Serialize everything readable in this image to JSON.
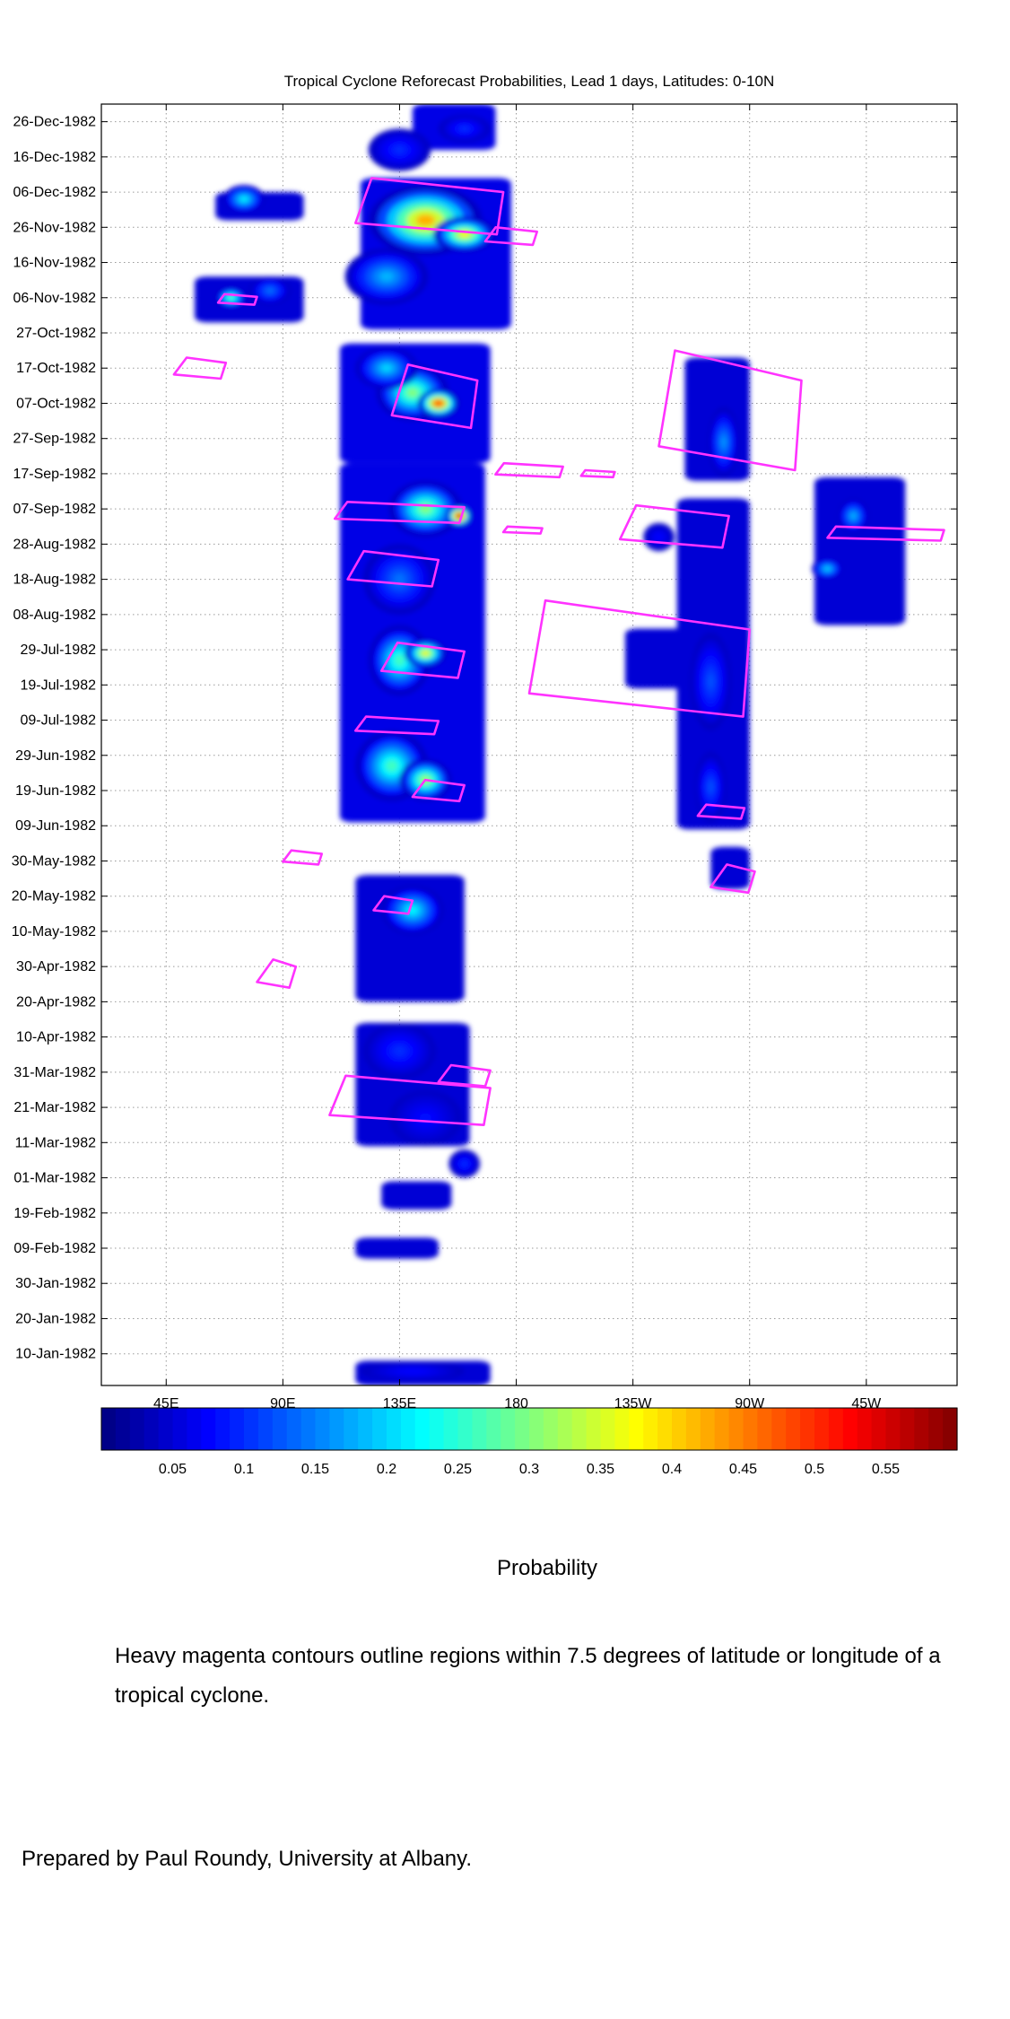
{
  "chart_data": {
    "type": "heatmap",
    "title": "Tropical Cyclone Reforecast Probabilities, Lead 1 days, Latitudes: 0-10N",
    "xlabel": "",
    "ylabel": "",
    "x_tick_labels": [
      "45E",
      "90E",
      "135E",
      "180",
      "135W",
      "90W",
      "45W"
    ],
    "x_ticks_deg_east": [
      45,
      90,
      135,
      180,
      225,
      270,
      315
    ],
    "xlim_deg_east": [
      20,
      350
    ],
    "y_tick_labels": [
      "10-Jan-1982",
      "20-Jan-1982",
      "30-Jan-1982",
      "09-Feb-1982",
      "19-Feb-1982",
      "01-Mar-1982",
      "11-Mar-1982",
      "21-Mar-1982",
      "31-Mar-1982",
      "10-Apr-1982",
      "20-Apr-1982",
      "30-Apr-1982",
      "10-May-1982",
      "20-May-1982",
      "30-May-1982",
      "09-Jun-1982",
      "19-Jun-1982",
      "29-Jun-1982",
      "09-Jul-1982",
      "19-Jul-1982",
      "29-Jul-1982",
      "08-Aug-1982",
      "18-Aug-1982",
      "28-Aug-1982",
      "07-Sep-1982",
      "17-Sep-1982",
      "27-Sep-1982",
      "07-Oct-1982",
      "17-Oct-1982",
      "27-Oct-1982",
      "06-Nov-1982",
      "16-Nov-1982",
      "26-Nov-1982",
      "06-Dec-1982",
      "16-Dec-1982",
      "26-Dec-1982"
    ],
    "ylim": [
      "01-Jan-1982",
      "31-Dec-1982"
    ],
    "grid": true,
    "colorbar": {
      "label": "Probability",
      "range": [
        0,
        0.6
      ],
      "tick_labels": [
        "0.05",
        "0.1",
        "0.15",
        "0.2",
        "0.25",
        "0.3",
        "0.35",
        "0.4",
        "0.45",
        "0.5",
        "0.55"
      ],
      "ticks": [
        0.05,
        0.1,
        0.15,
        0.2,
        0.25,
        0.3,
        0.35,
        0.4,
        0.45,
        0.5,
        0.55
      ],
      "colormap": "jet"
    },
    "contour_color": "#ff33ff",
    "blobs": [
      {
        "lon": 145,
        "date": "1982-11-28",
        "dlon": 22,
        "ddays": 10,
        "p": 0.42
      },
      {
        "lon": 160,
        "date": "1982-11-24",
        "dlon": 12,
        "ddays": 5,
        "p": 0.38
      },
      {
        "lon": 135,
        "date": "1982-12-18",
        "dlon": 12,
        "ddays": 6,
        "p": 0.1
      },
      {
        "lon": 160,
        "date": "1982-12-24",
        "dlon": 10,
        "ddays": 4,
        "p": 0.1
      },
      {
        "lon": 130,
        "date": "1982-11-12",
        "dlon": 16,
        "ddays": 8,
        "p": 0.18
      },
      {
        "lon": 75,
        "date": "1982-12-04",
        "dlon": 8,
        "ddays": 4,
        "p": 0.22
      },
      {
        "lon": 70,
        "date": "1982-11-06",
        "dlon": 6,
        "ddays": 3,
        "p": 0.28
      },
      {
        "lon": 85,
        "date": "1982-11-08",
        "dlon": 8,
        "ddays": 4,
        "p": 0.14
      },
      {
        "lon": 140,
        "date": "1982-10-10",
        "dlon": 14,
        "ddays": 8,
        "p": 0.3
      },
      {
        "lon": 150,
        "date": "1982-10-07",
        "dlon": 8,
        "ddays": 4,
        "p": 0.52
      },
      {
        "lon": 130,
        "date": "1982-10-17",
        "dlon": 12,
        "ddays": 6,
        "p": 0.2
      },
      {
        "lon": 145,
        "date": "1982-09-07",
        "dlon": 14,
        "ddays": 8,
        "p": 0.3
      },
      {
        "lon": 158,
        "date": "1982-09-05",
        "dlon": 5,
        "ddays": 3,
        "p": 0.58
      },
      {
        "lon": 135,
        "date": "1982-08-18",
        "dlon": 14,
        "ddays": 10,
        "p": 0.14
      },
      {
        "lon": 135,
        "date": "1982-07-26",
        "dlon": 12,
        "ddays": 10,
        "p": 0.26
      },
      {
        "lon": 145,
        "date": "1982-07-28",
        "dlon": 8,
        "ddays": 4,
        "p": 0.38
      },
      {
        "lon": 132,
        "date": "1982-06-26",
        "dlon": 14,
        "ddays": 10,
        "p": 0.26
      },
      {
        "lon": 145,
        "date": "1982-06-22",
        "dlon": 10,
        "ddays": 6,
        "p": 0.32
      },
      {
        "lon": 140,
        "date": "1982-05-16",
        "dlon": 12,
        "ddays": 7,
        "p": 0.22
      },
      {
        "lon": 135,
        "date": "1982-04-06",
        "dlon": 14,
        "ddays": 8,
        "p": 0.1
      },
      {
        "lon": 145,
        "date": "1982-03-18",
        "dlon": 14,
        "ddays": 8,
        "p": 0.08
      },
      {
        "lon": 160,
        "date": "1982-03-05",
        "dlon": 6,
        "ddays": 4,
        "p": 0.1
      },
      {
        "lon": 140,
        "date": "1982-01-05",
        "dlon": 20,
        "ddays": 3,
        "p": 0.08
      },
      {
        "lon": 260,
        "date": "1982-09-26",
        "dlon": 6,
        "ddays": 10,
        "p": 0.16
      },
      {
        "lon": 255,
        "date": "1982-07-20",
        "dlon": 8,
        "ddays": 14,
        "p": 0.12
      },
      {
        "lon": 255,
        "date": "1982-06-20",
        "dlon": 6,
        "ddays": 10,
        "p": 0.12
      },
      {
        "lon": 310,
        "date": "1982-09-05",
        "dlon": 6,
        "ddays": 5,
        "p": 0.18
      },
      {
        "lon": 300,
        "date": "1982-08-21",
        "dlon": 6,
        "ddays": 3,
        "p": 0.2
      },
      {
        "lon": 235,
        "date": "1982-08-30",
        "dlon": 6,
        "ddays": 4,
        "p": 0.08
      }
    ],
    "regions": [
      {
        "lon0": 140,
        "lon1": 172,
        "d0": "1982-12-18",
        "d1": "1982-12-31",
        "p": 0.06
      },
      {
        "lon0": 120,
        "lon1": 178,
        "d0": "1982-10-28",
        "d1": "1982-12-10",
        "p": 0.06
      },
      {
        "lon0": 64,
        "lon1": 98,
        "d0": "1982-11-28",
        "d1": "1982-12-06",
        "p": 0.05
      },
      {
        "lon0": 56,
        "lon1": 98,
        "d0": "1982-10-30",
        "d1": "1982-11-12",
        "p": 0.05
      },
      {
        "lon0": 112,
        "lon1": 170,
        "d0": "1982-09-20",
        "d1": "1982-10-24",
        "p": 0.06
      },
      {
        "lon0": 112,
        "lon1": 168,
        "d0": "1982-06-10",
        "d1": "1982-09-20",
        "p": 0.06
      },
      {
        "lon0": 118,
        "lon1": 160,
        "d0": "1982-04-20",
        "d1": "1982-05-26",
        "p": 0.05
      },
      {
        "lon0": 118,
        "lon1": 162,
        "d0": "1982-03-10",
        "d1": "1982-04-14",
        "p": 0.05
      },
      {
        "lon0": 128,
        "lon1": 155,
        "d0": "1982-02-20",
        "d1": "1982-02-28",
        "p": 0.05
      },
      {
        "lon0": 118,
        "lon1": 150,
        "d0": "1982-02-06",
        "d1": "1982-02-12",
        "p": 0.05
      },
      {
        "lon0": 118,
        "lon1": 170,
        "d0": "1982-01-01",
        "d1": "1982-01-08",
        "p": 0.05
      },
      {
        "lon0": 245,
        "lon1": 270,
        "d0": "1982-09-15",
        "d1": "1982-10-20",
        "p": 0.05
      },
      {
        "lon0": 242,
        "lon1": 270,
        "d0": "1982-06-08",
        "d1": "1982-09-10",
        "p": 0.05
      },
      {
        "lon0": 255,
        "lon1": 270,
        "d0": "1982-05-22",
        "d1": "1982-06-03",
        "p": 0.05
      },
      {
        "lon0": 222,
        "lon1": 250,
        "d0": "1982-07-18",
        "d1": "1982-08-04",
        "p": 0.05
      },
      {
        "lon0": 295,
        "lon1": 330,
        "d0": "1982-08-05",
        "d1": "1982-09-16",
        "p": 0.05
      }
    ],
    "contours": [
      {
        "lon0": 118,
        "lon1": 175,
        "d0": "1982-11-24",
        "d1": "1982-12-10"
      },
      {
        "lon0": 168,
        "lon1": 188,
        "d0": "1982-11-21",
        "d1": "1982-11-26"
      },
      {
        "lon0": 65,
        "lon1": 80,
        "d0": "1982-11-04",
        "d1": "1982-11-07"
      },
      {
        "lon0": 48,
        "lon1": 68,
        "d0": "1982-10-14",
        "d1": "1982-10-20"
      },
      {
        "lon0": 132,
        "lon1": 165,
        "d0": "1982-09-30",
        "d1": "1982-10-18"
      },
      {
        "lon0": 110,
        "lon1": 160,
        "d0": "1982-09-03",
        "d1": "1982-09-09"
      },
      {
        "lon0": 175,
        "lon1": 190,
        "d0": "1982-08-31",
        "d1": "1982-09-02"
      },
      {
        "lon0": 115,
        "lon1": 150,
        "d0": "1982-08-16",
        "d1": "1982-08-26"
      },
      {
        "lon0": 172,
        "lon1": 198,
        "d0": "1982-09-16",
        "d1": "1982-09-20"
      },
      {
        "lon0": 205,
        "lon1": 218,
        "d0": "1982-09-16",
        "d1": "1982-09-18"
      },
      {
        "lon0": 220,
        "lon1": 262,
        "d0": "1982-08-27",
        "d1": "1982-09-08"
      },
      {
        "lon0": 235,
        "lon1": 290,
        "d0": "1982-09-18",
        "d1": "1982-10-22"
      },
      {
        "lon0": 185,
        "lon1": 270,
        "d0": "1982-07-10",
        "d1": "1982-08-12"
      },
      {
        "lon0": 128,
        "lon1": 160,
        "d0": "1982-07-21",
        "d1": "1982-07-31"
      },
      {
        "lon0": 118,
        "lon1": 150,
        "d0": "1982-07-05",
        "d1": "1982-07-10"
      },
      {
        "lon0": 140,
        "lon1": 160,
        "d0": "1982-06-16",
        "d1": "1982-06-22"
      },
      {
        "lon0": 250,
        "lon1": 268,
        "d0": "1982-06-11",
        "d1": "1982-06-15"
      },
      {
        "lon0": 255,
        "lon1": 272,
        "d0": "1982-05-21",
        "d1": "1982-05-29"
      },
      {
        "lon0": 90,
        "lon1": 105,
        "d0": "1982-05-29",
        "d1": "1982-06-02"
      },
      {
        "lon0": 125,
        "lon1": 140,
        "d0": "1982-05-15",
        "d1": "1982-05-20"
      },
      {
        "lon0": 80,
        "lon1": 95,
        "d0": "1982-04-24",
        "d1": "1982-05-02"
      },
      {
        "lon0": 108,
        "lon1": 170,
        "d0": "1982-03-16",
        "d1": "1982-03-30"
      },
      {
        "lon0": 150,
        "lon1": 170,
        "d0": "1982-03-27",
        "d1": "1982-04-02"
      },
      {
        "lon0": 300,
        "lon1": 345,
        "d0": "1982-08-29",
        "d1": "1982-09-02"
      }
    ]
  },
  "caption": "Heavy magenta contours outline regions within 7.5 degrees of latitude or longitude of a tropical cyclone.",
  "credit": "Prepared by Paul Roundy, University at Albany."
}
